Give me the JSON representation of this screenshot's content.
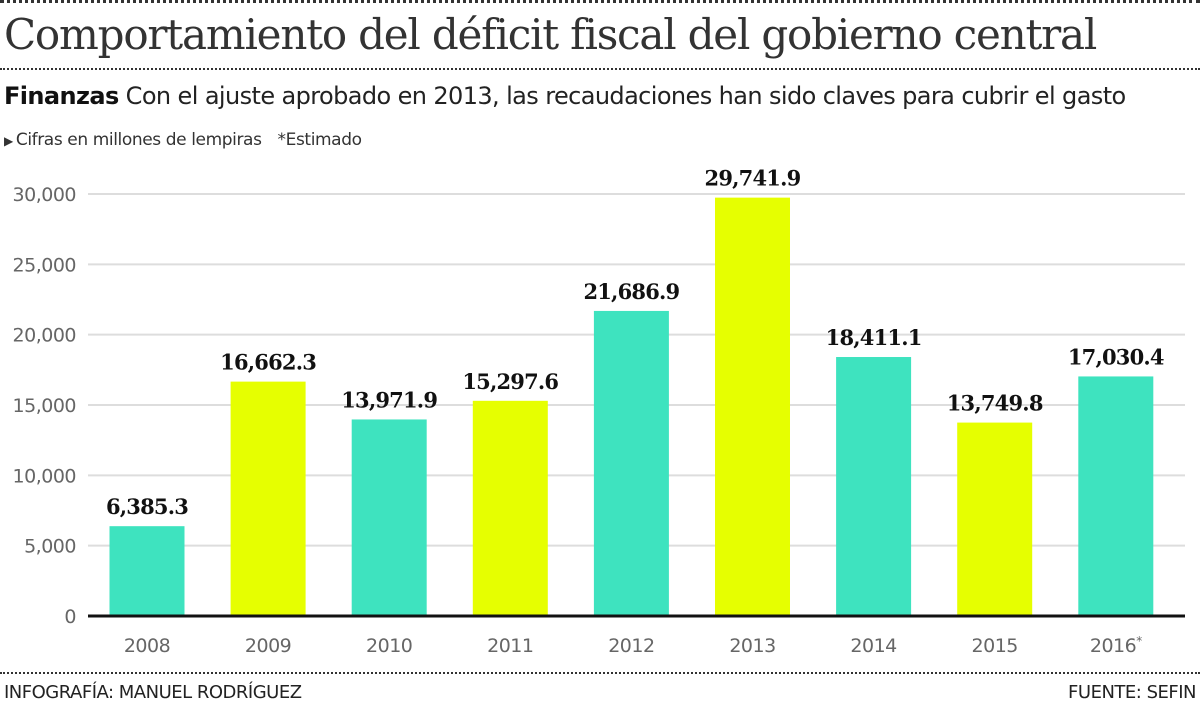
{
  "header": {
    "title": "Comportamiento del déficit fiscal del gobierno central",
    "kicker": "Finanzas",
    "subtitle": "Con el ajuste aprobado en 2013, las recaudaciones han sido claves para cubrir el gasto",
    "note_marker": "▶",
    "note": "Cifras en millones de lempiras",
    "estimate_note": "*Estimado"
  },
  "footer": {
    "credit": "INFOGRAFÍA: MANUEL RODRÍGUEZ",
    "source": "FUENTE: SEFIN"
  },
  "colors": {
    "teal": "#3EE3BF",
    "yellow": "#E6FF00",
    "gridline": "#dddddd",
    "axis": "#111111"
  },
  "chart_data": {
    "type": "bar",
    "title": "Comportamiento del déficit fiscal del gobierno central",
    "xlabel": "",
    "ylabel": "Cifras en millones de lempiras",
    "categories": [
      "2008",
      "2009",
      "2010",
      "2011",
      "2012",
      "2013",
      "2014",
      "2015",
      "2016*"
    ],
    "values": [
      6385.3,
      16662.3,
      13971.9,
      15297.6,
      21686.9,
      29741.9,
      18411.1,
      13749.8,
      17030.4
    ],
    "value_labels": [
      "6,385.3",
      "16,662.3",
      "13,971.9",
      "15,297.6",
      "21,686.9",
      "29,741.9",
      "18,411.1",
      "13,749.8",
      "17,030.4"
    ],
    "bar_colors": [
      "teal",
      "yellow",
      "teal",
      "yellow",
      "teal",
      "yellow",
      "teal",
      "yellow",
      "teal"
    ],
    "ylim": [
      0,
      30000
    ],
    "yticks": [
      0,
      5000,
      10000,
      15000,
      20000,
      25000,
      30000
    ],
    "ytick_labels": [
      "0",
      "5,000",
      "10,000",
      "15,000",
      "20,000",
      "25,000",
      "30,000"
    ],
    "grid": true,
    "legend": "none"
  }
}
